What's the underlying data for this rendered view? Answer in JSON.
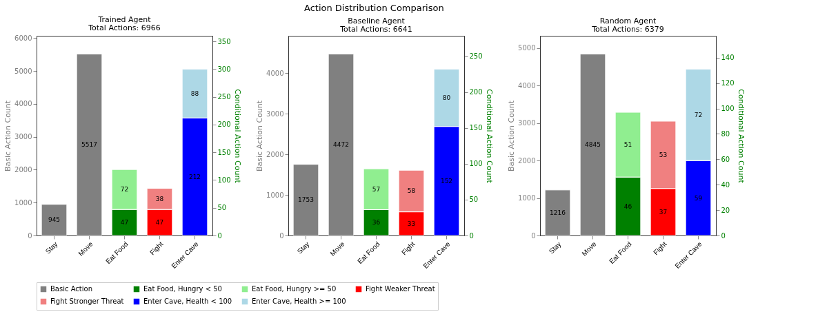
{
  "chart_data": [
    {
      "type": "bar",
      "title": "Trained Agent",
      "subtitle": "Total Actions: 6966",
      "annotations": [
        "Action Distribution Comparison"
      ],
      "categories": [
        "Stay",
        "Move",
        "Eat Food",
        "Fight",
        "Enter Cave"
      ],
      "stacked": true,
      "data_labels": true,
      "grid": false,
      "legend": "bottom",
      "ylabel": "Basic Action Count",
      "y2label": "Conditional Action Count",
      "ylim": [
        0,
        6069
      ],
      "yticks": [
        0,
        1000,
        2000,
        3000,
        4000,
        5000,
        6000
      ],
      "y2lim": [
        0,
        360
      ],
      "y2ticks": [
        0,
        50,
        100,
        150,
        200,
        250,
        300,
        350
      ],
      "series": [
        {
          "name": "Basic Action",
          "color": "#808080",
          "values": [
            945,
            5517,
            null,
            null,
            null
          ]
        },
        {
          "name": "Eat Food, Hungry < 50",
          "color": "#008000",
          "axis": "y2",
          "values": [
            null,
            null,
            47,
            null,
            null
          ]
        },
        {
          "name": "Eat Food, Hungry >= 50",
          "color": "#90ee90",
          "axis": "y2",
          "values": [
            null,
            null,
            72,
            null,
            null
          ]
        },
        {
          "name": "Fight Weaker Threat",
          "color": "#ff0000",
          "axis": "y2",
          "values": [
            null,
            null,
            null,
            47,
            null
          ]
        },
        {
          "name": "Fight Stronger Threat",
          "color": "#f08080",
          "axis": "y2",
          "values": [
            null,
            null,
            null,
            38,
            null
          ]
        },
        {
          "name": "Enter Cave, Health < 100",
          "color": "#0000ff",
          "axis": "y2",
          "values": [
            null,
            null,
            null,
            null,
            212
          ]
        },
        {
          "name": "Enter Cave, Health >= 100",
          "color": "#add8e6",
          "axis": "y2",
          "values": [
            null,
            null,
            null,
            null,
            88
          ]
        }
      ]
    },
    {
      "type": "bar",
      "title": "Baseline Agent",
      "subtitle": "Total Actions: 6641",
      "categories": [
        "Stay",
        "Move",
        "Eat Food",
        "Fight",
        "Enter Cave"
      ],
      "stacked": true,
      "data_labels": true,
      "grid": false,
      "legend": "bottom",
      "ylabel": "Basic Action Count",
      "y2label": "Conditional Action Count",
      "ylim": [
        0,
        4919
      ],
      "yticks": [
        0,
        1000,
        2000,
        3000,
        4000
      ],
      "y2lim": [
        0,
        278.4
      ],
      "y2ticks": [
        0,
        50,
        100,
        150,
        200,
        250
      ],
      "series": [
        {
          "name": "Basic Action",
          "color": "#808080",
          "values": [
            1753,
            4472,
            null,
            null,
            null
          ]
        },
        {
          "name": "Eat Food, Hungry < 50",
          "color": "#008000",
          "axis": "y2",
          "values": [
            null,
            null,
            36,
            null,
            null
          ]
        },
        {
          "name": "Eat Food, Hungry >= 50",
          "color": "#90ee90",
          "axis": "y2",
          "values": [
            null,
            null,
            57,
            null,
            null
          ]
        },
        {
          "name": "Fight Weaker Threat",
          "color": "#ff0000",
          "axis": "y2",
          "values": [
            null,
            null,
            null,
            33,
            null
          ]
        },
        {
          "name": "Fight Stronger Threat",
          "color": "#f08080",
          "axis": "y2",
          "values": [
            null,
            null,
            null,
            58,
            null
          ]
        },
        {
          "name": "Enter Cave, Health < 100",
          "color": "#0000ff",
          "axis": "y2",
          "values": [
            null,
            null,
            null,
            null,
            152
          ]
        },
        {
          "name": "Enter Cave, Health >= 100",
          "color": "#add8e6",
          "axis": "y2",
          "values": [
            null,
            null,
            null,
            null,
            80
          ]
        }
      ]
    },
    {
      "type": "bar",
      "title": "Random Agent",
      "subtitle": "Total Actions: 6379",
      "categories": [
        "Stay",
        "Move",
        "Eat Food",
        "Fight",
        "Enter Cave"
      ],
      "stacked": true,
      "data_labels": true,
      "grid": false,
      "legend": "bottom",
      "ylabel": "Basic Action Count",
      "y2label": "Conditional Action Count",
      "ylim": [
        0,
        5330
      ],
      "yticks": [
        0,
        1000,
        2000,
        3000,
        4000,
        5000
      ],
      "y2lim": [
        0,
        157.2
      ],
      "y2ticks": [
        0,
        20,
        40,
        60,
        80,
        100,
        120,
        140
      ],
      "series": [
        {
          "name": "Basic Action",
          "color": "#808080",
          "values": [
            1216,
            4845,
            null,
            null,
            null
          ]
        },
        {
          "name": "Eat Food, Hungry < 50",
          "color": "#008000",
          "axis": "y2",
          "values": [
            null,
            null,
            46,
            null,
            null
          ]
        },
        {
          "name": "Eat Food, Hungry >= 50",
          "color": "#90ee90",
          "axis": "y2",
          "values": [
            null,
            null,
            51,
            null,
            null
          ]
        },
        {
          "name": "Fight Weaker Threat",
          "color": "#ff0000",
          "axis": "y2",
          "values": [
            null,
            null,
            null,
            37,
            null
          ]
        },
        {
          "name": "Fight Stronger Threat",
          "color": "#f08080",
          "axis": "y2",
          "values": [
            null,
            null,
            null,
            53,
            null
          ]
        },
        {
          "name": "Enter Cave, Health < 100",
          "color": "#0000ff",
          "axis": "y2",
          "values": [
            null,
            null,
            null,
            null,
            59
          ]
        },
        {
          "name": "Enter Cave, Health >= 100",
          "color": "#add8e6",
          "axis": "y2",
          "values": [
            null,
            null,
            null,
            null,
            72
          ]
        }
      ]
    }
  ]
}
